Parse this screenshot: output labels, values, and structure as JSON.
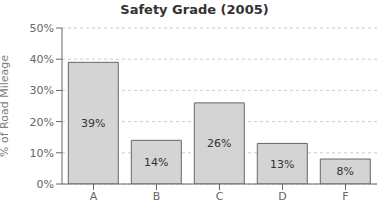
{
  "chart_data": {
    "type": "bar",
    "title": "Safety Grade (2005)",
    "categories": [
      "A",
      "B",
      "C",
      "D",
      "F"
    ],
    "values": [
      39,
      14,
      26,
      13,
      8
    ],
    "value_labels": [
      "39%",
      "14%",
      "26%",
      "13%",
      "8%"
    ],
    "data_labels": true,
    "ylabel": "% of Road Mileage",
    "ylim": [
      0,
      50
    ],
    "yticks": [
      {
        "value": 0,
        "label": "0%"
      },
      {
        "value": 10,
        "label": "10%"
      },
      {
        "value": 20,
        "label": "20%"
      },
      {
        "value": 30,
        "label": "30%"
      },
      {
        "value": 40,
        "label": "40%"
      },
      {
        "value": 50,
        "label": "50%"
      }
    ],
    "color": "#d4d4d4",
    "grid": true
  }
}
